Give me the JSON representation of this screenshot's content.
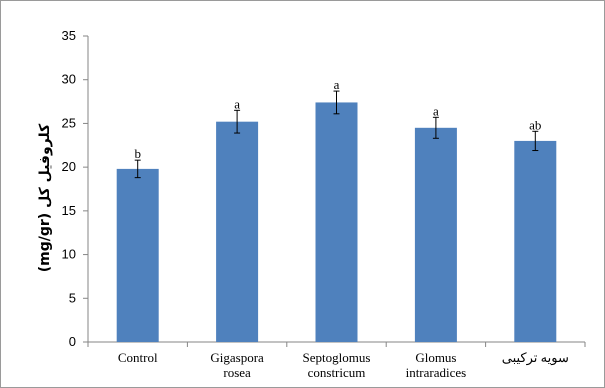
{
  "chart_data": {
    "type": "bar",
    "title": "",
    "xlabel": "",
    "ylabel": "(mg/gr) کلروفیل کل",
    "ylim": [
      0,
      35
    ],
    "yticks": [
      0,
      5,
      10,
      15,
      20,
      25,
      30,
      35
    ],
    "grid": false,
    "legend": "none",
    "bar_color": "#4f81bd",
    "categories": [
      [
        "Control"
      ],
      [
        "Gigaspora",
        "rosea"
      ],
      [
        "Septoglomus",
        "constricum"
      ],
      [
        "Glomus",
        "intraradices"
      ],
      [
        "سویه ترکیبی"
      ]
    ],
    "values": [
      19.8,
      25.2,
      27.4,
      24.5,
      23.0
    ],
    "errors": [
      1.0,
      1.3,
      1.3,
      1.2,
      1.1
    ],
    "significance_letters": [
      "b",
      "a",
      "a",
      "a",
      "ab"
    ]
  }
}
